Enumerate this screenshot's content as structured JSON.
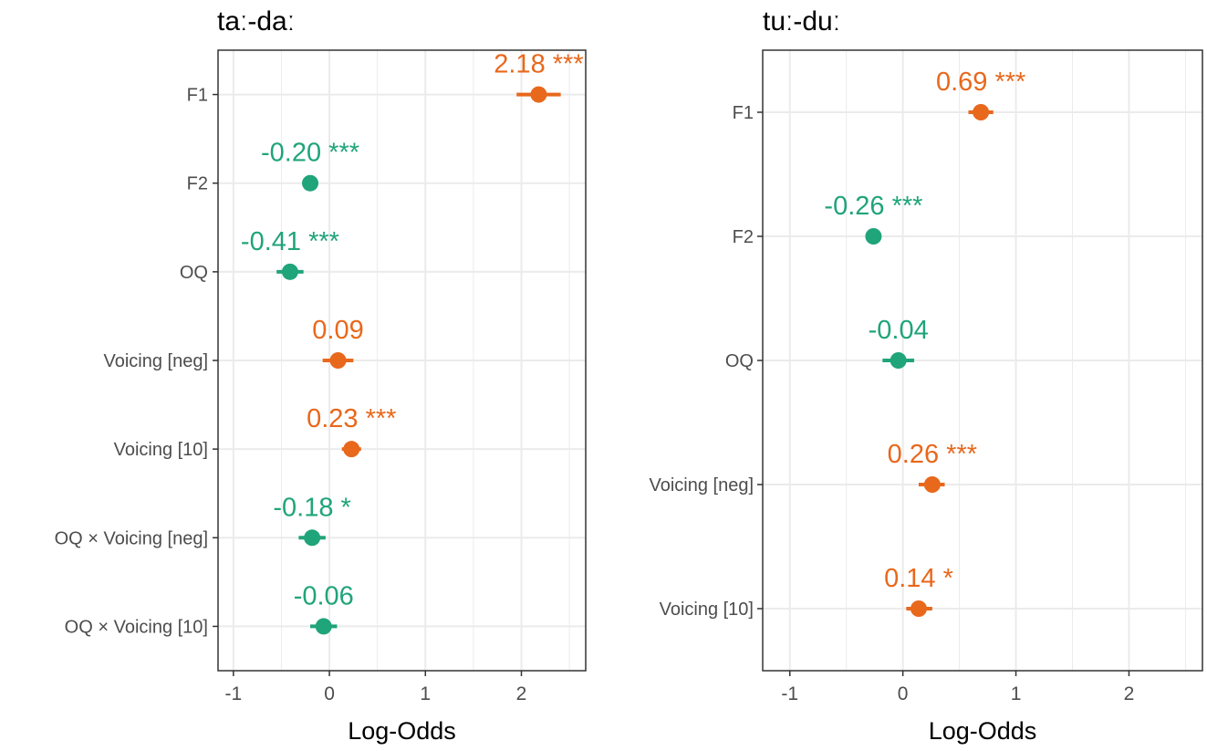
{
  "colors": {
    "positive": "#E8681C",
    "negative": "#20A47A",
    "grid": "#EBEBEB",
    "axis": "#333333"
  },
  "chart_data": [
    {
      "type": "scatter",
      "title": "taː-daː",
      "xlabel": "Log-Odds",
      "ylabel": "",
      "xlim": [
        -1.16,
        2.67
      ],
      "xticks": [
        "-1",
        "0",
        "1",
        "2"
      ],
      "grid": true,
      "categories": [
        "F1",
        "F2",
        "OQ",
        "Voicing [neg]",
        "Voicing [10]",
        "OQ × Voicing [neg]",
        "OQ × Voicing [10]"
      ],
      "estimates": [
        2.18,
        -0.2,
        -0.41,
        0.09,
        0.23,
        -0.18,
        -0.06
      ],
      "ci_low": [
        1.95,
        -0.24,
        -0.55,
        -0.07,
        0.13,
        -0.32,
        -0.2
      ],
      "ci_high": [
        2.41,
        -0.16,
        -0.27,
        0.25,
        0.33,
        -0.04,
        0.08
      ],
      "labels": [
        "2.18 ***",
        "-0.20 ***",
        "-0.41 ***",
        "0.09",
        "0.23 ***",
        "-0.18 *",
        "-0.06"
      ]
    },
    {
      "type": "scatter",
      "title": "tuː-duː",
      "xlabel": "Log-Odds",
      "ylabel": "",
      "xlim": [
        -1.24,
        2.65
      ],
      "xticks": [
        "-1",
        "0",
        "1",
        "2"
      ],
      "grid": true,
      "categories": [
        "F1",
        "F2",
        "OQ",
        "Voicing [neg]",
        "Voicing [10]"
      ],
      "estimates": [
        0.69,
        -0.26,
        -0.04,
        0.26,
        0.14
      ],
      "ci_low": [
        0.58,
        -0.3,
        -0.18,
        0.14,
        0.03
      ],
      "ci_high": [
        0.8,
        -0.22,
        0.1,
        0.37,
        0.26
      ],
      "labels": [
        "0.69 ***",
        "-0.26 ***",
        "-0.04",
        "0.26 ***",
        "0.14 *"
      ]
    }
  ]
}
